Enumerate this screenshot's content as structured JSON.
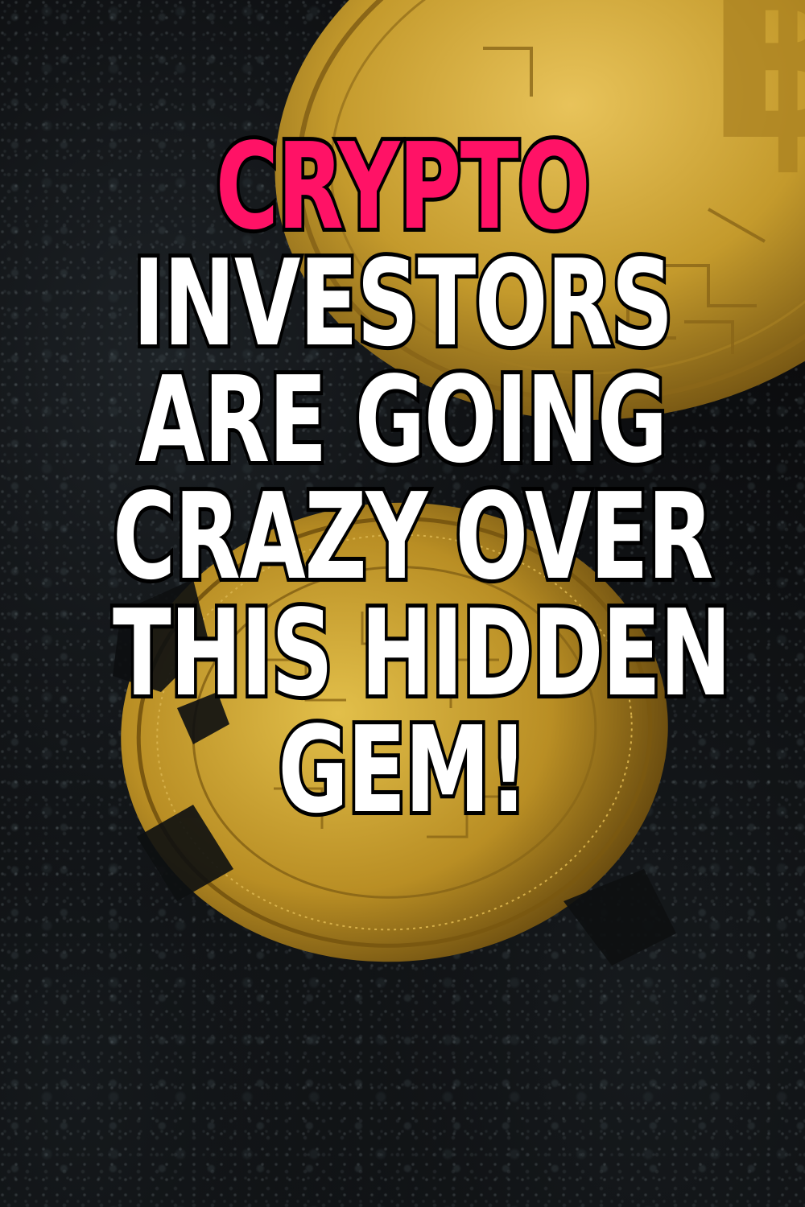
{
  "headline": {
    "accent_line": "CRYPTO",
    "lines": [
      "INVESTORS",
      "ARE GOING",
      "CRAZY OVER",
      "THIS HIDDEN",
      "GEM!"
    ]
  },
  "colors": {
    "accent": "#ff1266",
    "text": "#ffffff",
    "stroke": "#000000",
    "coin_gold": "#c9a23a",
    "coin_dark": "#7a5c14",
    "background": "#0b0c0e"
  },
  "image": {
    "subject": "gold-bitcoin-coins-icon",
    "background": "dark-gravel-texture"
  }
}
